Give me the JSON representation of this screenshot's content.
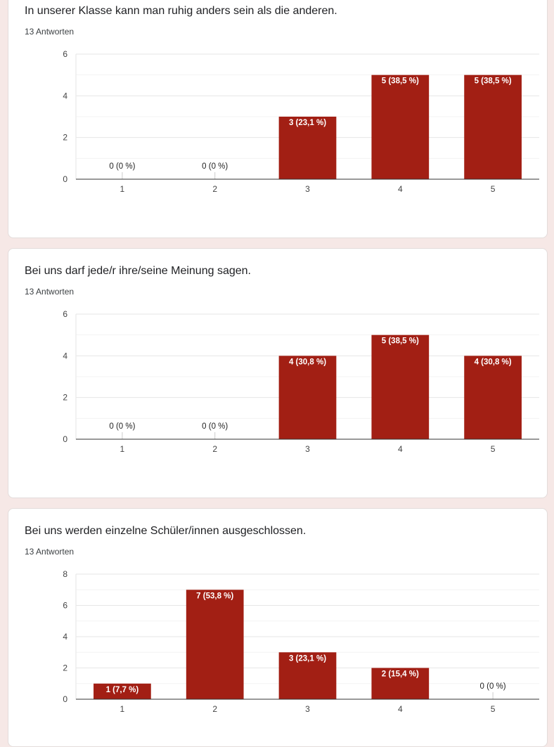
{
  "colors": {
    "bar": "#a21f14",
    "background": "#f6e8e6"
  },
  "questions": [
    {
      "title": "In unserer Klasse kann man ruhig anders sein als die anderen.",
      "responses": "13 Antworten"
    },
    {
      "title": "Bei uns darf jede/r ihre/seine Meinung sagen.",
      "responses": "13 Antworten"
    },
    {
      "title": "Bei uns werden einzelne Schüler/innen ausgeschlossen.",
      "responses": "13 Antworten"
    }
  ],
  "chart_data": [
    {
      "type": "bar",
      "title": "In unserer Klasse kann man ruhig anders sein als die anderen.",
      "categories": [
        "1",
        "2",
        "3",
        "4",
        "5"
      ],
      "values": [
        0,
        0,
        3,
        5,
        5
      ],
      "labels": [
        "0 (0 %)",
        "0 (0 %)",
        "3 (23,1 %)",
        "5 (38,5 %)",
        "5 (38,5 %)"
      ],
      "yticks": [
        "0",
        "2",
        "4",
        "6"
      ],
      "ylim": [
        0,
        6
      ],
      "grid": true
    },
    {
      "type": "bar",
      "title": "Bei uns darf jede/r ihre/seine Meinung sagen.",
      "categories": [
        "1",
        "2",
        "3",
        "4",
        "5"
      ],
      "values": [
        0,
        0,
        4,
        5,
        4
      ],
      "labels": [
        "0 (0 %)",
        "0 (0 %)",
        "4 (30,8 %)",
        "5 (38,5 %)",
        "4 (30,8 %)"
      ],
      "yticks": [
        "0",
        "2",
        "4",
        "6"
      ],
      "ylim": [
        0,
        6
      ],
      "grid": true
    },
    {
      "type": "bar",
      "title": "Bei uns werden einzelne Schüler/innen ausgeschlossen.",
      "categories": [
        "1",
        "2",
        "3",
        "4",
        "5"
      ],
      "values": [
        1,
        7,
        3,
        2,
        0
      ],
      "labels": [
        "1 (7,7 %)",
        "7 (53,8 %)",
        "3 (23,1 %)",
        "2 (15,4 %)",
        "0 (0 %)"
      ],
      "yticks": [
        "0",
        "2",
        "4",
        "6",
        "8"
      ],
      "ylim": [
        0,
        8
      ],
      "grid": true
    }
  ]
}
